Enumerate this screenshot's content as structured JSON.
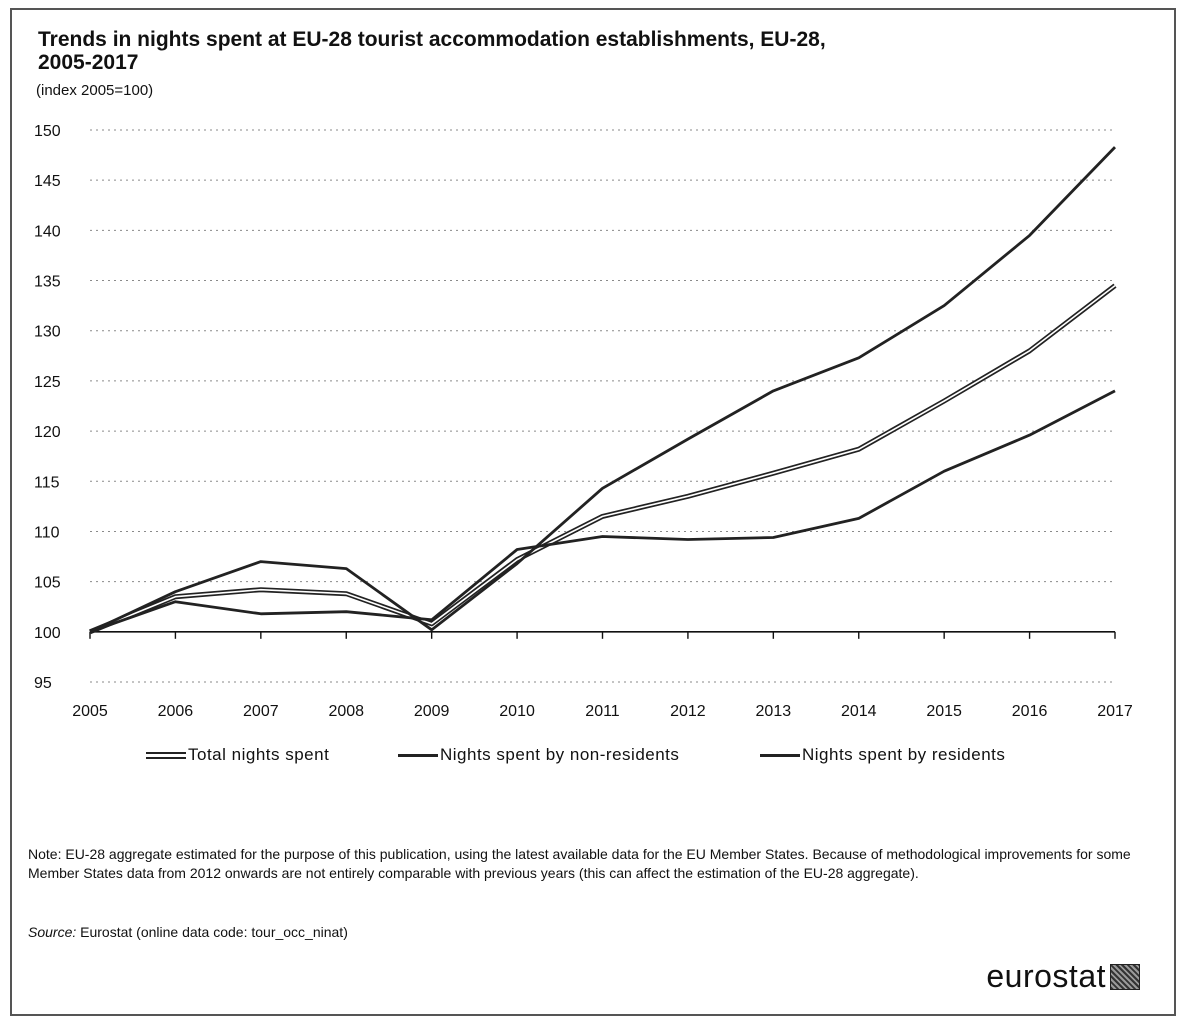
{
  "chart_data": {
    "type": "line",
    "title_line1": "Trends in nights spent at EU-28 tourist accommodation establishments, EU-28,",
    "title_line2": "2005-2017",
    "subtitle": "(index 2005=100)",
    "x": [
      "2005",
      "2006",
      "2007",
      "2008",
      "2009",
      "2010",
      "2011",
      "2012",
      "2013",
      "2014",
      "2015",
      "2016",
      "2017"
    ],
    "ylim": [
      95,
      150
    ],
    "yticks": [
      95,
      100,
      105,
      110,
      115,
      120,
      125,
      130,
      135,
      140,
      145,
      150
    ],
    "grid": true,
    "legend_position": "bottom",
    "series": [
      {
        "name": "Total nights spent",
        "color": "#222222",
        "style": "double",
        "values": [
          100,
          103.5,
          104.2,
          103.8,
          100.8,
          107.2,
          111.5,
          113.5,
          115.8,
          118.2,
          123,
          128,
          134.5
        ]
      },
      {
        "name": "Nights spent by non-residents",
        "color": "#222222",
        "style": "solid",
        "values": [
          100,
          104,
          107,
          106.3,
          100.2,
          106.8,
          114.3,
          119.2,
          124,
          127.3,
          132.5,
          139.5,
          148.3
        ]
      },
      {
        "name": "Nights spent by residents",
        "color": "#222222",
        "style": "solid",
        "values": [
          100,
          103,
          101.8,
          102,
          101.2,
          108.2,
          109.5,
          109.2,
          109.4,
          111.3,
          116,
          119.6,
          124
        ]
      }
    ]
  },
  "note": "Note: EU-28 aggregate estimated for the purpose of this publication, using the latest available data for the EU Member States. Because of methodological improvements for some Member States data from 2012 onwards are not entirely comparable with previous years (this can affect the estimation of the EU-28 aggregate).",
  "source_label": "Source:",
  "source_text": " Eurostat (online data code: tour_occ_ninat)",
  "brand": "eurostat"
}
